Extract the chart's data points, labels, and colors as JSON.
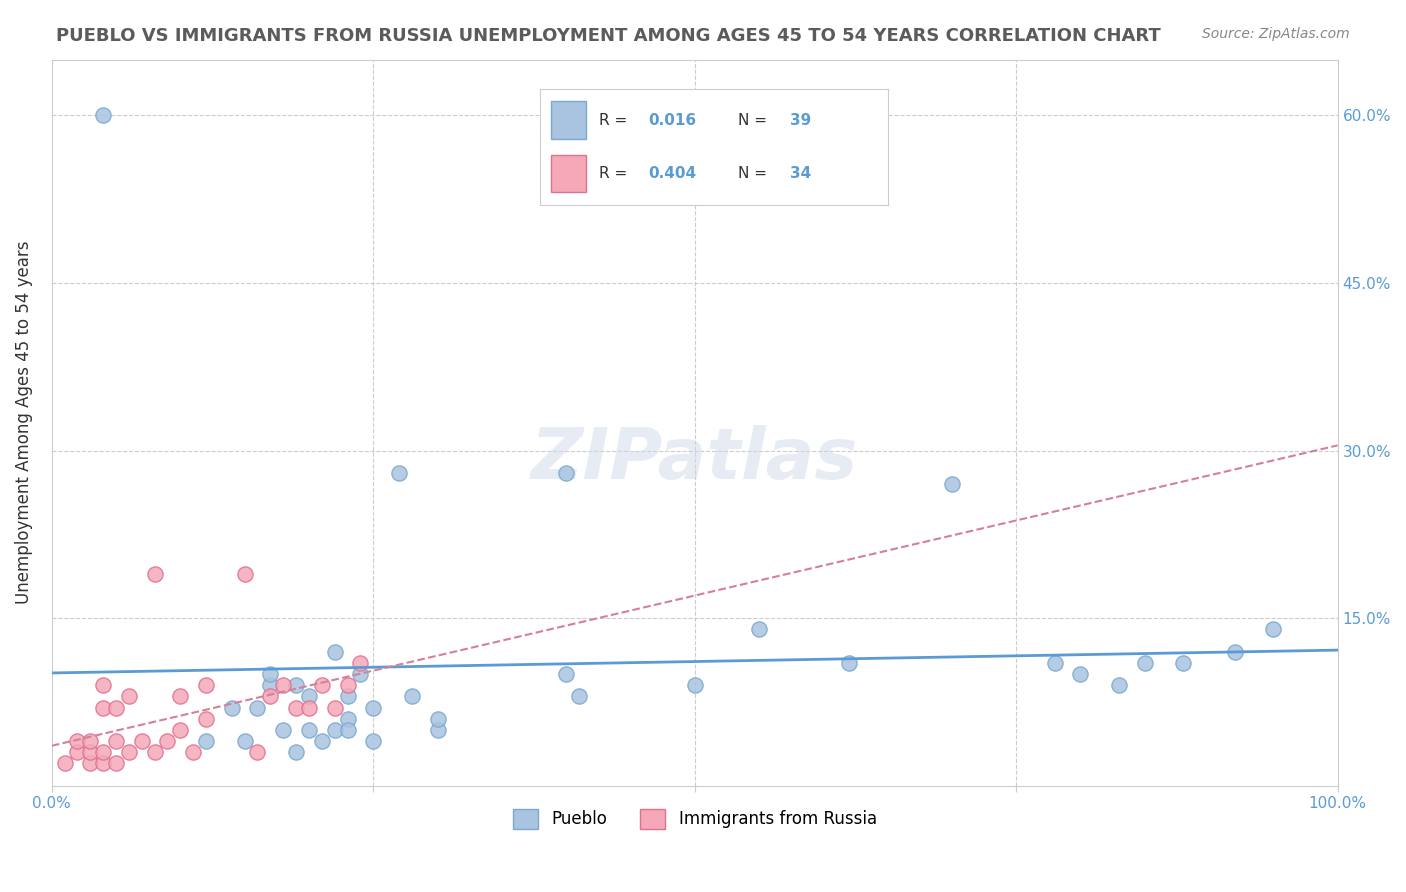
{
  "title": "PUEBLO VS IMMIGRANTS FROM RUSSIA UNEMPLOYMENT AMONG AGES 45 TO 54 YEARS CORRELATION CHART",
  "source": "Source: ZipAtlas.com",
  "xlabel": "",
  "ylabel": "Unemployment Among Ages 45 to 54 years",
  "xlim": [
    0,
    1
  ],
  "ylim": [
    0,
    0.65
  ],
  "xticks": [
    0.0,
    0.25,
    0.5,
    0.75,
    1.0
  ],
  "xticklabels": [
    "0.0%",
    "",
    "",
    "",
    "100.0%"
  ],
  "ytick_positions": [
    0.0,
    0.15,
    0.3,
    0.45,
    0.6
  ],
  "ytick_labels": [
    "",
    "15.0%",
    "30.0%",
    "45.0%",
    "60.0%"
  ],
  "pueblo_color": "#a8c4e0",
  "russia_color": "#f4a8b8",
  "pueblo_edge": "#7ba8cc",
  "russia_edge": "#e07090",
  "trendline_pueblo_color": "#5b9bd5",
  "trendline_russia_color": "#d4809a",
  "pueblo_x": [
    0.04,
    0.12,
    0.14,
    0.15,
    0.16,
    0.17,
    0.17,
    0.18,
    0.19,
    0.19,
    0.2,
    0.2,
    0.21,
    0.22,
    0.22,
    0.23,
    0.23,
    0.23,
    0.24,
    0.25,
    0.25,
    0.27,
    0.28,
    0.3,
    0.3,
    0.4,
    0.4,
    0.41,
    0.5,
    0.55,
    0.62,
    0.7,
    0.78,
    0.8,
    0.83,
    0.85,
    0.88,
    0.92,
    0.95
  ],
  "pueblo_y": [
    0.6,
    0.04,
    0.07,
    0.04,
    0.07,
    0.09,
    0.1,
    0.05,
    0.03,
    0.09,
    0.05,
    0.08,
    0.04,
    0.05,
    0.12,
    0.06,
    0.05,
    0.08,
    0.1,
    0.04,
    0.07,
    0.28,
    0.08,
    0.05,
    0.06,
    0.28,
    0.1,
    0.08,
    0.09,
    0.14,
    0.11,
    0.27,
    0.11,
    0.1,
    0.09,
    0.11,
    0.11,
    0.12,
    0.14
  ],
  "russia_x": [
    0.01,
    0.02,
    0.02,
    0.03,
    0.03,
    0.03,
    0.04,
    0.04,
    0.04,
    0.04,
    0.05,
    0.05,
    0.05,
    0.06,
    0.06,
    0.07,
    0.08,
    0.08,
    0.09,
    0.1,
    0.1,
    0.11,
    0.12,
    0.12,
    0.15,
    0.16,
    0.17,
    0.18,
    0.19,
    0.2,
    0.21,
    0.22,
    0.23,
    0.24
  ],
  "russia_y": [
    0.02,
    0.03,
    0.04,
    0.02,
    0.03,
    0.04,
    0.02,
    0.03,
    0.07,
    0.09,
    0.02,
    0.04,
    0.07,
    0.03,
    0.08,
    0.04,
    0.03,
    0.19,
    0.04,
    0.05,
    0.08,
    0.03,
    0.09,
    0.06,
    0.19,
    0.03,
    0.08,
    0.09,
    0.07,
    0.07,
    0.09,
    0.07,
    0.09,
    0.11
  ],
  "watermark": "ZIPatlas",
  "background_color": "#ffffff",
  "grid_color": "#cccccc",
  "legend_r_pueblo": "0.016",
  "legend_n_pueblo": "39",
  "legend_r_russia": "0.404",
  "legend_n_russia": "34",
  "bottom_legend_labels": [
    "Pueblo",
    "Immigrants from Russia"
  ]
}
